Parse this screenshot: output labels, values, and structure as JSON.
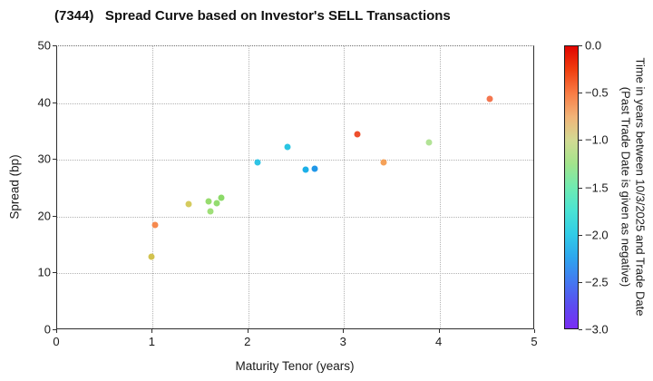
{
  "title": "(7344)   Spread Curve based on Investor's SELL Transactions",
  "chart_data": {
    "type": "scatter",
    "title": "(7344)   Spread Curve based on Investor's SELL Transactions",
    "xlabel": "Maturity Tenor (years)",
    "ylabel": "Spread (bp)",
    "xlim": [
      0,
      5
    ],
    "ylim": [
      0,
      50
    ],
    "xticks": [
      "0",
      "1",
      "2",
      "3",
      "4",
      "5"
    ],
    "yticks": [
      "0",
      "10",
      "20",
      "30",
      "40",
      "50"
    ],
    "grid": true,
    "legend_position": "none",
    "points": [
      {
        "maturity": 0.99,
        "spread": 12.9,
        "trade_time_years": -1.15,
        "color": "#d2c24f"
      },
      {
        "maturity": 1.02,
        "spread": 18.6,
        "trade_time_years": -0.6,
        "color": "#f6894e"
      },
      {
        "maturity": 1.38,
        "spread": 22.2,
        "trade_time_years": -1.1,
        "color": "#d5cb5e"
      },
      {
        "maturity": 1.58,
        "spread": 22.7,
        "trade_time_years": -1.4,
        "color": "#97dc6e"
      },
      {
        "maturity": 1.6,
        "spread": 20.9,
        "trade_time_years": -1.4,
        "color": "#9fdf78"
      },
      {
        "maturity": 1.67,
        "spread": 22.3,
        "trade_time_years": -1.4,
        "color": "#93dc70"
      },
      {
        "maturity": 1.72,
        "spread": 23.3,
        "trade_time_years": -1.45,
        "color": "#8bda68"
      },
      {
        "maturity": 2.1,
        "spread": 29.5,
        "trade_time_years": -1.95,
        "color": "#2fc4e5"
      },
      {
        "maturity": 2.41,
        "spread": 32.2,
        "trade_time_years": -1.95,
        "color": "#29c5e2"
      },
      {
        "maturity": 2.6,
        "spread": 28.2,
        "trade_time_years": -2.1,
        "color": "#1cb0e8"
      },
      {
        "maturity": 2.69,
        "spread": 28.5,
        "trade_time_years": -2.25,
        "color": "#2097e8"
      },
      {
        "maturity": 3.14,
        "spread": 34.5,
        "trade_time_years": -0.25,
        "color": "#ee4f2c"
      },
      {
        "maturity": 3.42,
        "spread": 29.6,
        "trade_time_years": -0.75,
        "color": "#f5a158"
      },
      {
        "maturity": 3.89,
        "spread": 33.1,
        "trade_time_years": -1.3,
        "color": "#b2e396"
      },
      {
        "maturity": 4.53,
        "spread": 40.8,
        "trade_time_years": -0.5,
        "color": "#f4764f"
      }
    ],
    "colorbar": {
      "vmax": 0.0,
      "vmin": -3.0,
      "ticks": [
        "0.0",
        "−0.5",
        "−1.0",
        "−1.5",
        "−2.0",
        "−2.5",
        "−3.0"
      ],
      "label_line1": "Time in years between 10/3/2025 and Trade Date",
      "label_line2": "(Past Trade Date is given as negative)",
      "gradient_stops": [
        [
          0,
          "#e10400"
        ],
        [
          8.33,
          "#f03f10"
        ],
        [
          16.67,
          "#f87c45"
        ],
        [
          25,
          "#f1b478"
        ],
        [
          33.33,
          "#d2da93"
        ],
        [
          41.67,
          "#a2e48c"
        ],
        [
          50,
          "#70ebb1"
        ],
        [
          58.33,
          "#4ae3d3"
        ],
        [
          66.67,
          "#30cce7"
        ],
        [
          75,
          "#2ea5ee"
        ],
        [
          83.33,
          "#4379f1"
        ],
        [
          91.67,
          "#5b4df0"
        ],
        [
          100,
          "#7a2cf3"
        ]
      ]
    }
  }
}
